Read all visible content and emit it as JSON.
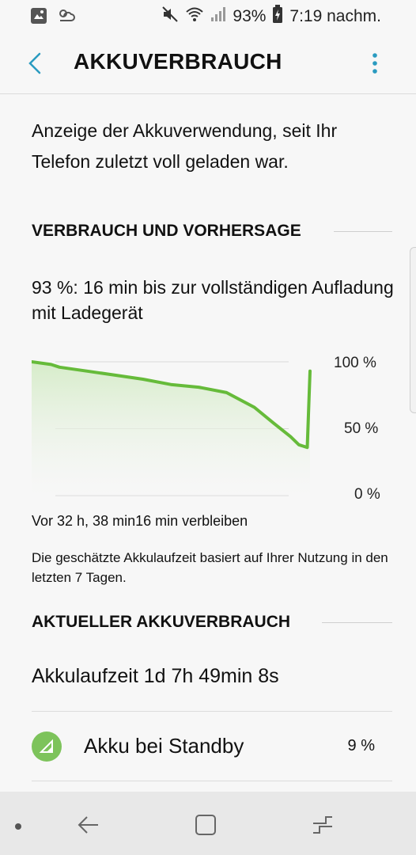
{
  "status_bar": {
    "battery_percent": "93%",
    "time": "7:19 nachm."
  },
  "app_bar": {
    "title": "AKKUVERBRAUCH"
  },
  "intro_text": "Anzeige der Akkuverwendung, seit Ihr Telefon zuletzt voll geladen war.",
  "sections": {
    "forecast_header": "VERBRAUCH UND VORHERSAGE",
    "current_header": "AKTUELLER AKKUVERBRAUCH"
  },
  "prediction": "93 %: 16 min bis zur vollständigen Aufladung mit Ladegerät",
  "chart_data": {
    "type": "area",
    "y_ticks": [
      "100 %",
      "50 %",
      "0 %"
    ],
    "ylim": [
      0,
      100
    ],
    "x": [
      0,
      0.07,
      0.1,
      0.2,
      0.3,
      0.4,
      0.5,
      0.6,
      0.7,
      0.8,
      0.87,
      0.93,
      0.96,
      0.99,
      1.0
    ],
    "values": [
      100,
      98,
      96,
      93,
      90,
      87,
      83,
      81,
      77,
      66,
      54,
      44,
      38,
      36,
      93
    ],
    "start_label": "Vor 32 h, 38 min",
    "end_label": "16 min verbleiben",
    "line_color": "#66bb3a",
    "fill_color": "#dff0d4",
    "grid": true
  },
  "estimate_note": "Die geschätzte Akkulaufzeit basiert auf Ihrer Nutzung in den letzten 7 Tagen.",
  "runtime": "Akkulaufzeit 1d 7h 49min 8s",
  "usage_items": [
    {
      "label": "Akku bei Standby",
      "value": "9 %",
      "icon": "standby-signal-icon",
      "icon_color": "#7dc35b"
    }
  ]
}
